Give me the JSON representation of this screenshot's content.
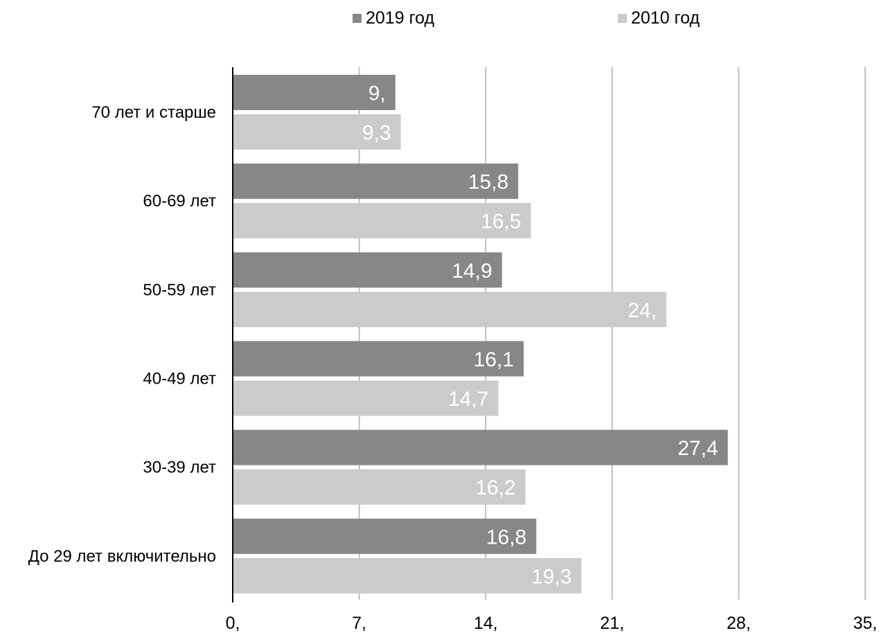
{
  "chart_data": {
    "type": "bar",
    "orientation": "horizontal",
    "title": "",
    "xlabel": "",
    "ylabel": "",
    "categories": [
      "70 лет и старше",
      "60-69 лет",
      "50-59 лет",
      "40-49 лет",
      "30-39 лет",
      "До 29 лет включительно"
    ],
    "series": [
      {
        "name": "2019 год",
        "color": "#878787",
        "values": [
          9.0,
          15.8,
          14.9,
          16.1,
          27.4,
          16.8
        ],
        "labels": [
          "9,",
          "15,8",
          "14,9",
          "16,1",
          "27,4",
          "16,8"
        ]
      },
      {
        "name": "2010 год",
        "color": "#cbcbcb",
        "values": [
          9.3,
          16.5,
          24.0,
          14.7,
          16.2,
          19.3
        ],
        "labels": [
          "9,3",
          "16,5",
          "24,",
          "14,7",
          "16,2",
          "19,3"
        ]
      }
    ],
    "xlim": [
      0,
      35
    ],
    "xticks": [
      0,
      7,
      14,
      21,
      28,
      35
    ],
    "xtick_labels": [
      "0,",
      "7,",
      "14,",
      "21,",
      "28,",
      "35,"
    ],
    "grid": "vertical",
    "legend_position": "top"
  }
}
